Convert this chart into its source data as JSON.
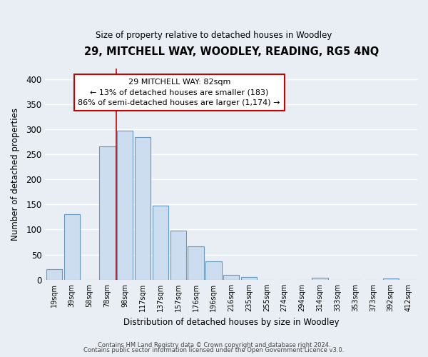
{
  "title": "29, MITCHELL WAY, WOODLEY, READING, RG5 4NQ",
  "subtitle": "Size of property relative to detached houses in Woodley",
  "xlabel": "Distribution of detached houses by size in Woodley",
  "ylabel": "Number of detached properties",
  "bar_labels": [
    "19sqm",
    "39sqm",
    "58sqm",
    "78sqm",
    "98sqm",
    "117sqm",
    "137sqm",
    "157sqm",
    "176sqm",
    "196sqm",
    "216sqm",
    "235sqm",
    "255sqm",
    "274sqm",
    "294sqm",
    "314sqm",
    "333sqm",
    "353sqm",
    "373sqm",
    "392sqm",
    "412sqm"
  ],
  "bar_values": [
    21,
    130,
    0,
    265,
    297,
    284,
    148,
    98,
    67,
    37,
    9,
    5,
    0,
    0,
    0,
    4,
    0,
    0,
    0,
    2,
    0
  ],
  "bar_color": "#ccddf0",
  "bar_edge_color": "#6699bb",
  "ylim": [
    0,
    420
  ],
  "yticks": [
    0,
    50,
    100,
    150,
    200,
    250,
    300,
    350,
    400
  ],
  "vline_x": 3.5,
  "vline_color": "#cc0000",
  "annotation_line1": "29 MITCHELL WAY: 82sqm",
  "annotation_line2": "← 13% of detached houses are smaller (183)",
  "annotation_line3": "86% of semi-detached houses are larger (1,174) →",
  "footer1": "Contains HM Land Registry data © Crown copyright and database right 2024.",
  "footer2": "Contains public sector information licensed under the Open Government Licence v3.0.",
  "background_color": "#e8eef4",
  "grid_color": "#ffffff"
}
